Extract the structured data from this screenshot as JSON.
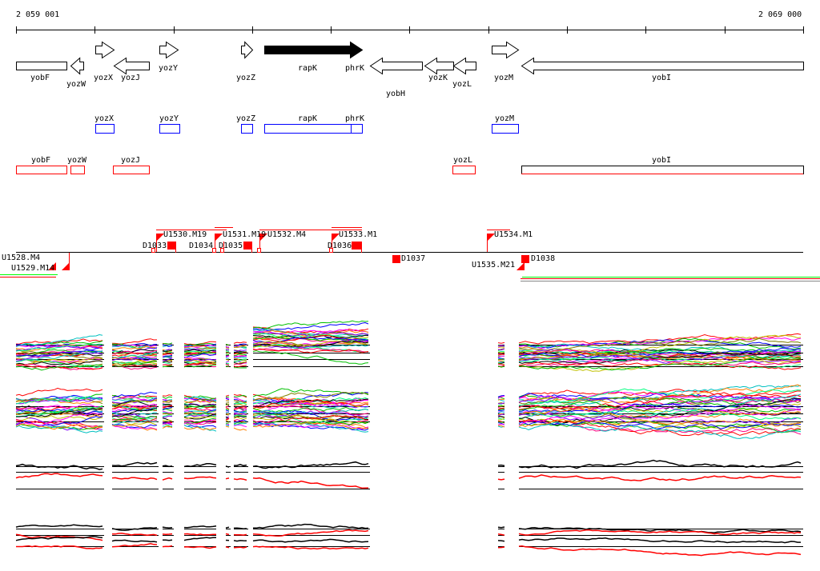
{
  "ruler": {
    "start_label": "2 059 001",
    "end_label": "2 069 000"
  },
  "genes": [
    {
      "name": "yobF",
      "strand": "-",
      "partial": true
    },
    {
      "name": "yozW",
      "strand": "-"
    },
    {
      "name": "yozX",
      "strand": "+"
    },
    {
      "name": "yozJ",
      "strand": "-"
    },
    {
      "name": "yozY",
      "strand": "+"
    },
    {
      "name": "yozZ",
      "strand": "+"
    },
    {
      "name": "rapK",
      "strand": "+",
      "highlighted": true
    },
    {
      "name": "phrK",
      "strand": "+",
      "highlighted": true
    },
    {
      "name": "yobH",
      "strand": "-"
    },
    {
      "name": "yozK",
      "strand": "-"
    },
    {
      "name": "yozL",
      "strand": "-"
    },
    {
      "name": "yozM",
      "strand": "+"
    },
    {
      "name": "yobI",
      "strand": "-"
    }
  ],
  "forward_features": [
    "yozX",
    "yozY",
    "yozZ",
    "rapK",
    "phrK",
    "yozM"
  ],
  "reverse_features": [
    "yobF",
    "yozW",
    "yozJ",
    "yozL",
    "yobI"
  ],
  "upstream_markers": [
    "U1530.M19",
    "U1531.M19",
    "U1532.M4",
    "U1533.M1",
    "U1534.M1"
  ],
  "lower_markers": [
    "U1528.M4",
    "U1529.M14",
    "U1535.M21"
  ],
  "downstream_markers": [
    "D1033",
    "D1034",
    "D1035",
    "D1036",
    "D1037",
    "D1038"
  ],
  "colors": {
    "forward_box": "#0000ff",
    "reverse_box": "#ff0000",
    "marker": "#ff0000",
    "green": "#00ff00"
  }
}
